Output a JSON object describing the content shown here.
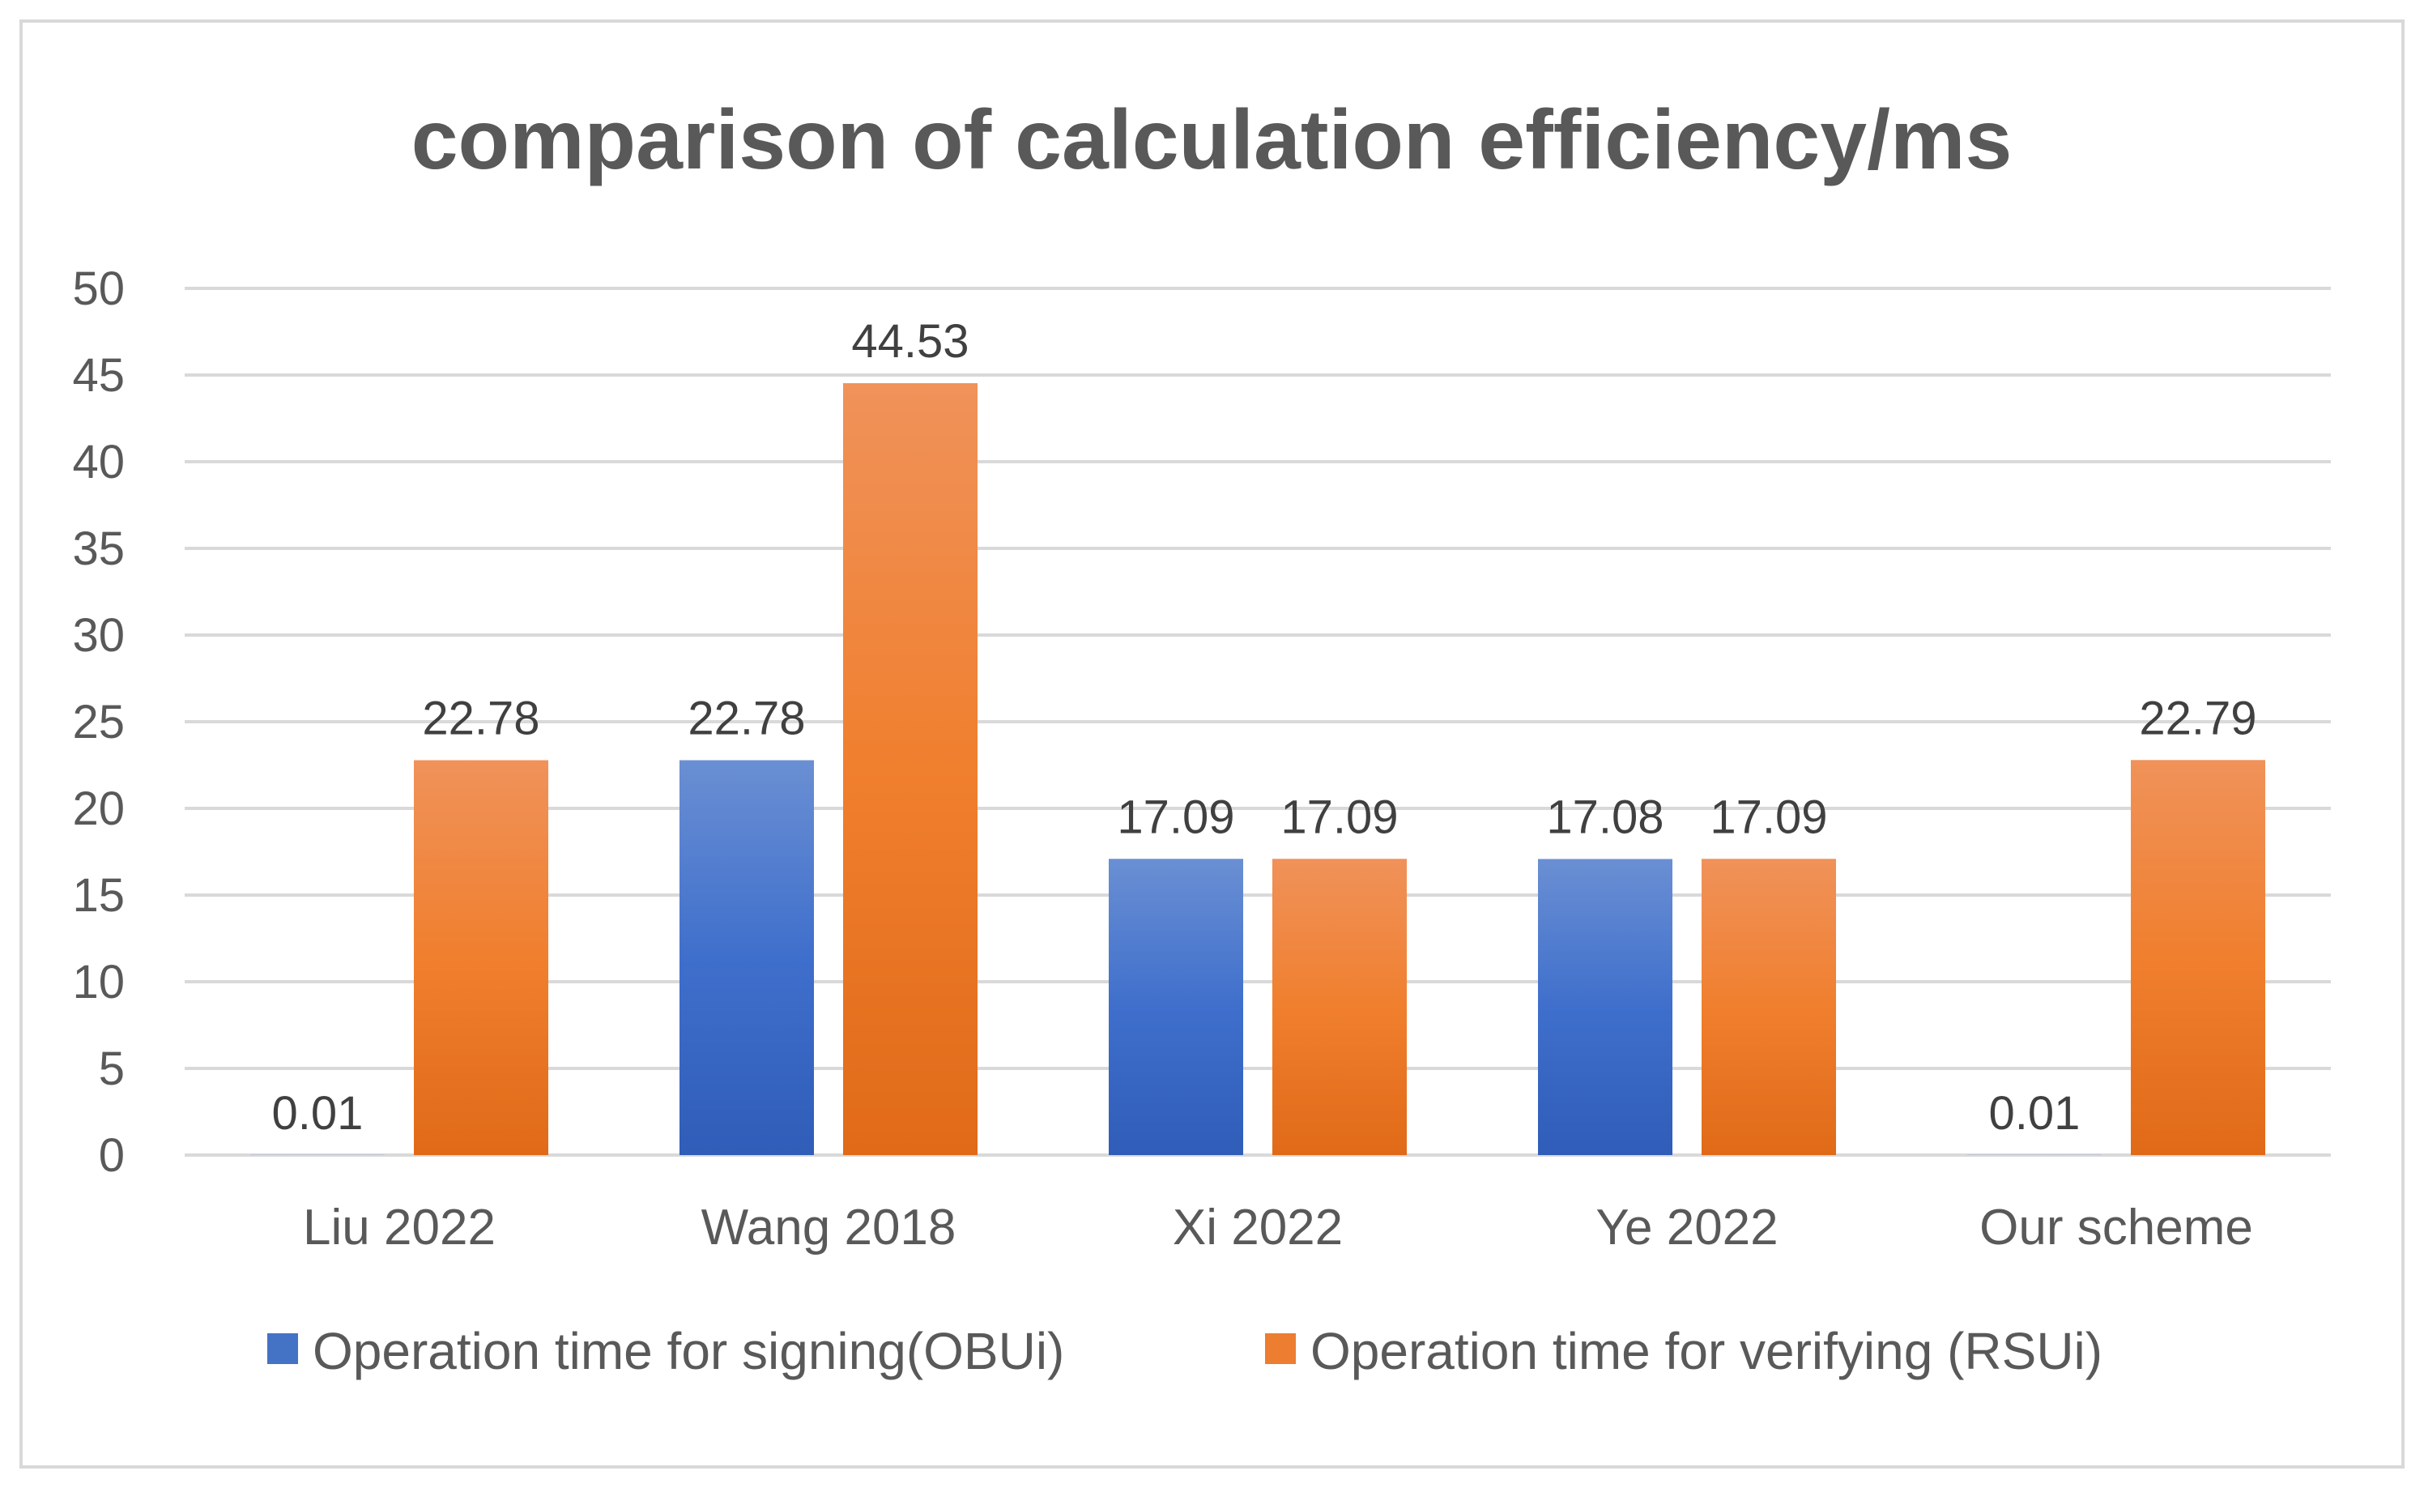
{
  "chart_data": {
    "type": "bar",
    "title": "comparison of calculation efficiency/ms",
    "xlabel": "",
    "ylabel": "",
    "ylim": [
      0,
      50
    ],
    "yticks": [
      0,
      5,
      10,
      15,
      20,
      25,
      30,
      35,
      40,
      45,
      50
    ],
    "grid": true,
    "legend_position": "bottom",
    "categories": [
      "Liu 2022",
      "Wang 2018",
      "Xi 2022",
      "Ye 2022",
      "Our scheme"
    ],
    "series": [
      {
        "name": "Operation time for signing(OBUi)",
        "values": [
          0.01,
          22.78,
          17.09,
          17.08,
          0.01
        ],
        "labels": [
          "0.01",
          "22.78",
          "17.09",
          "17.08",
          "0.01"
        ],
        "color": "#4472C4"
      },
      {
        "name": "Operation time for verifying (RSUi)",
        "values": [
          22.78,
          44.53,
          17.09,
          17.09,
          22.79
        ],
        "labels": [
          "22.78",
          "44.53",
          "17.09",
          "17.09",
          "22.79"
        ],
        "color": "#ED7D31"
      }
    ],
    "colors": {
      "text": "#595959",
      "title": "#595959",
      "grid": "#D9D9D9",
      "border": "#D9D9D9"
    }
  }
}
